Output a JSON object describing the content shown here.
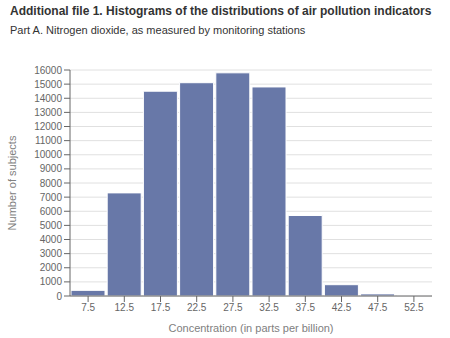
{
  "chart_data": {
    "type": "bar",
    "title": "Additional file 1. Histograms of the distributions of air pollution indicators",
    "subtitle": "Part A. Nitrogen dioxide, as measured by monitoring stations",
    "xlabel": "Concentration (in parts per billion)",
    "ylabel": "Number of subjects",
    "x": [
      7.5,
      12.5,
      17.5,
      22.5,
      27.5,
      32.5,
      37.5,
      42.5,
      47.5,
      52.5
    ],
    "values": [
      400,
      7300,
      14500,
      15100,
      15800,
      14800,
      5700,
      800,
      150,
      20
    ],
    "color": "#6878a8",
    "xlim": [
      5.0,
      55.0
    ],
    "xticks": [
      7.5,
      12.5,
      17.5,
      22.5,
      27.5,
      32.5,
      37.5,
      42.5,
      47.5,
      52.5
    ],
    "ylim": [
      0,
      16000
    ],
    "yticks": [
      0,
      1000,
      2000,
      3000,
      4000,
      5000,
      6000,
      7000,
      8000,
      9000,
      10000,
      11000,
      12000,
      13000,
      14000,
      15000,
      16000
    ],
    "grid": true
  }
}
